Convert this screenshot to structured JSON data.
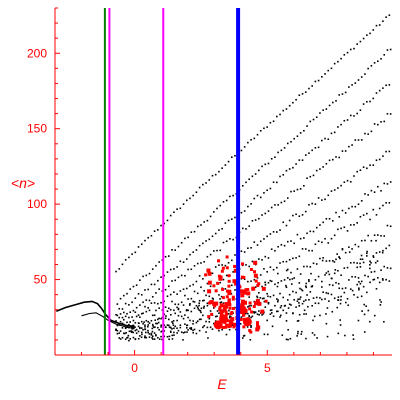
{
  "chart_data": {
    "type": "scatter",
    "xlabel": "E",
    "ylabel": "<n>",
    "xlim": [
      -3.0,
      9.7
    ],
    "ylim": [
      0,
      230
    ],
    "x_ticks": [
      0,
      5
    ],
    "x_tick_labels": [
      "0",
      "5"
    ],
    "y_ticks": [
      50,
      100,
      150,
      200
    ],
    "y_tick_labels": [
      "50",
      "100",
      "150",
      "200"
    ],
    "grid": false,
    "legend": "none",
    "colors": {
      "axis": "#ff0000",
      "text": "#ff0000",
      "black_series": "#000000",
      "red_series": "#ff0000",
      "green_line": "#008000",
      "magenta_line": "#ff00ff",
      "blue_line": "#0000ff"
    },
    "vertical_lines": [
      {
        "x": -1.12,
        "color": "#008000",
        "width": "thin"
      },
      {
        "x": -0.95,
        "color": "#ff00ff",
        "width": "thin"
      },
      {
        "x": 1.08,
        "color": "#ff00ff",
        "width": "thin"
      },
      {
        "x": 3.9,
        "color": "#0000ff",
        "width": "thick"
      }
    ],
    "black_curve": [
      [
        -2.95,
        29
      ],
      [
        -2.6,
        31.5
      ],
      [
        -2.2,
        33.5
      ],
      [
        -1.9,
        35
      ],
      [
        -1.6,
        35.5
      ],
      [
        -1.4,
        34
      ],
      [
        -1.25,
        31
      ],
      [
        -1.1,
        27
      ],
      [
        -0.9,
        23
      ],
      [
        -0.6,
        21
      ],
      [
        -0.3,
        19.5
      ],
      [
        0.0,
        19
      ]
    ],
    "black_secondary_curve": [
      [
        -2.0,
        26
      ],
      [
        -1.7,
        27.5
      ],
      [
        -1.45,
        28
      ],
      [
        -1.2,
        25.5
      ],
      [
        -1.0,
        23
      ],
      [
        -0.7,
        20.5
      ],
      [
        -0.3,
        18.5
      ],
      [
        0.0,
        17.5
      ]
    ],
    "dotted_bands": [
      {
        "y_start": 55,
        "y_end": 225,
        "curvature": 0.95
      },
      {
        "y_start": 35,
        "y_end": 203,
        "curvature": 1.0
      },
      {
        "y_start": 28,
        "y_end": 180,
        "curvature": 1.05
      },
      {
        "y_start": 25,
        "y_end": 160,
        "curvature": 1.1
      },
      {
        "y_start": 22,
        "y_end": 135,
        "curvature": 1.15
      },
      {
        "y_start": 20,
        "y_end": 115,
        "curvature": 1.2
      },
      {
        "y_start": 18,
        "y_end": 100,
        "curvature": 1.3
      },
      {
        "y_start": 17,
        "y_end": 84,
        "curvature": 1.4
      },
      {
        "y_start": 15,
        "y_end": 70,
        "curvature": 1.5
      },
      {
        "y_start": 14,
        "y_end": 58,
        "curvature": 1.6
      },
      {
        "y_start": 13,
        "y_end": 50,
        "curvature": 1.7
      }
    ],
    "red_cluster": {
      "x_range": [
        2.2,
        5.4
      ],
      "y_range": [
        15,
        70
      ],
      "center": [
        3.8,
        33
      ],
      "count": 140
    },
    "red_large_points": [
      [
        3.35,
        24
      ],
      [
        4.05,
        30
      ],
      [
        4.25,
        22
      ],
      [
        3.15,
        20
      ]
    ]
  }
}
